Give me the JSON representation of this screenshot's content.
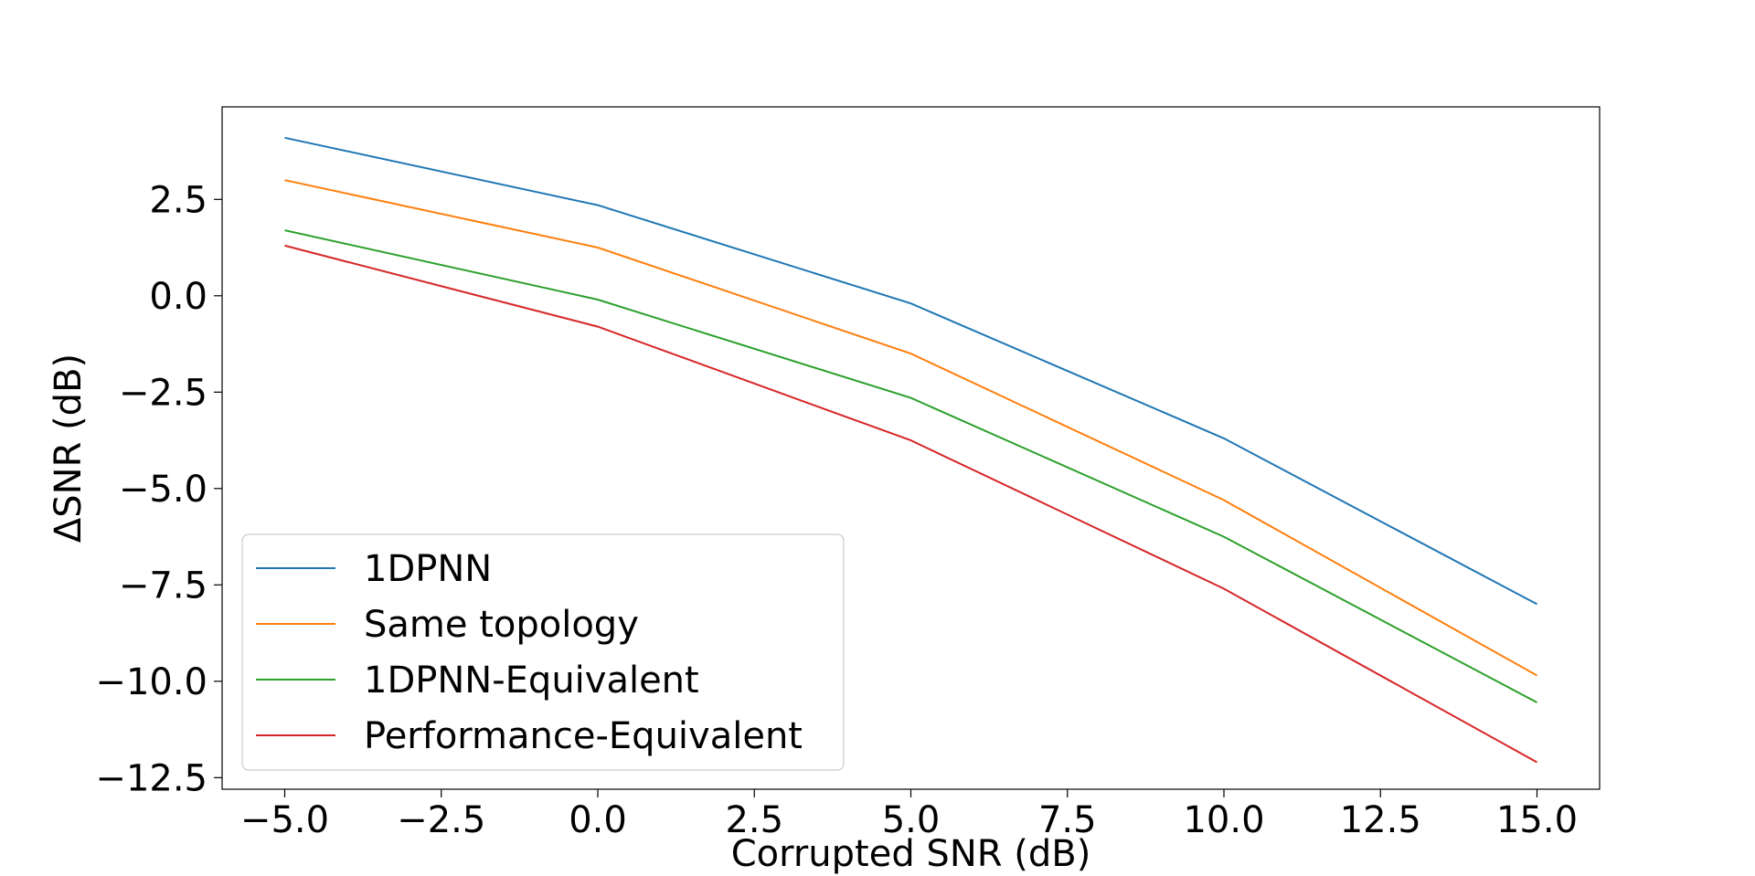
{
  "chart_data": {
    "type": "line",
    "title": "",
    "xlabel": "Corrupted SNR (dB)",
    "ylabel": "ΔSNR (dB)",
    "xlim": [
      -6.0,
      16.0
    ],
    "ylim": [
      -12.8,
      4.9
    ],
    "xticks": [
      -5.0,
      -2.5,
      0.0,
      2.5,
      5.0,
      7.5,
      10.0,
      12.5,
      15.0
    ],
    "xtick_labels": [
      "−5.0",
      "−2.5",
      "0.0",
      "2.5",
      "5.0",
      "7.5",
      "10.0",
      "12.5",
      "15.0"
    ],
    "yticks": [
      2.5,
      0.0,
      -2.5,
      -5.0,
      -7.5,
      -10.0,
      -12.5
    ],
    "ytick_labels": [
      "2.5",
      "0.0",
      "−2.5",
      "−5.0",
      "−7.5",
      "−10.0",
      "−12.5"
    ],
    "grid": false,
    "legend_position": "lower-left",
    "x": [
      -5,
      0,
      5,
      10,
      15
    ],
    "series": [
      {
        "name": "1DPNN",
        "color": "#1f77b4",
        "values": [
          4.1,
          2.35,
          -0.2,
          -3.7,
          -8.0
        ]
      },
      {
        "name": "Same topology",
        "color": "#ff7f0e",
        "values": [
          3.0,
          1.25,
          -1.5,
          -5.3,
          -9.85
        ]
      },
      {
        "name": "1DPNN-Equivalent",
        "color": "#2ca02c",
        "values": [
          1.7,
          -0.1,
          -2.65,
          -6.25,
          -10.55
        ]
      },
      {
        "name": "Performance-Equivalent",
        "color": "#d62728",
        "values": [
          1.3,
          -0.8,
          -3.75,
          -7.6,
          -12.1
        ]
      }
    ]
  }
}
